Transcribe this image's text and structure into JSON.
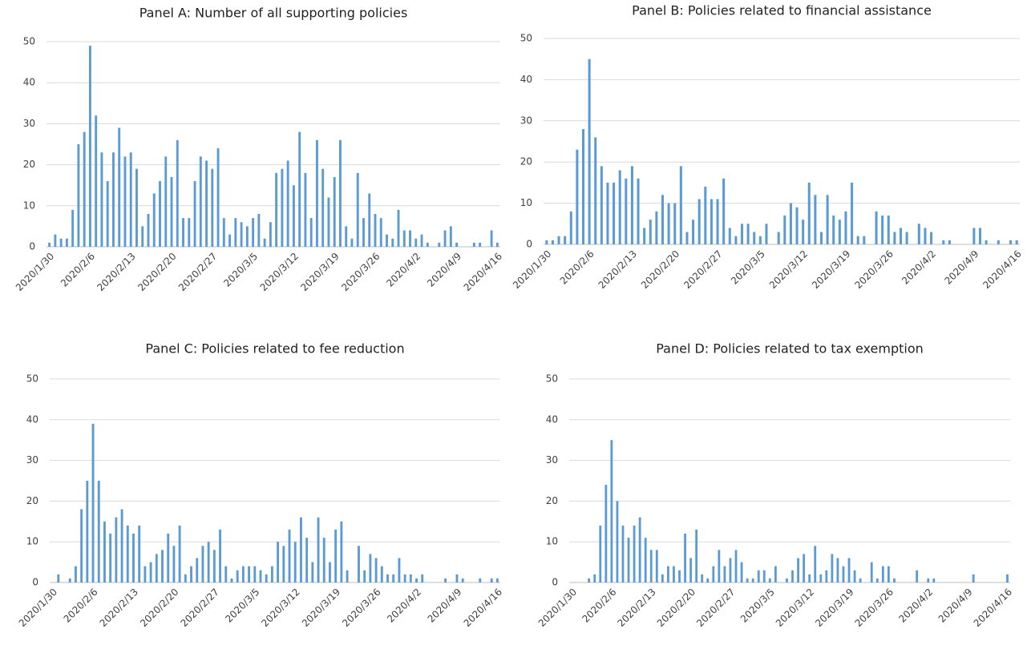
{
  "chart_data": [
    {
      "type": "bar",
      "title": "Panel A: Number of all supporting policies",
      "color": "#5b9bd5",
      "ylim": [
        0,
        50
      ],
      "yticks": [
        0,
        10,
        20,
        30,
        40,
        50
      ],
      "grid": true,
      "categories": [
        "2020/1/30",
        null,
        null,
        null,
        null,
        null,
        null,
        "2020/2/6",
        null,
        null,
        null,
        null,
        null,
        null,
        "2020/2/13",
        null,
        null,
        null,
        null,
        null,
        null,
        "2020/2/20",
        null,
        null,
        null,
        null,
        null,
        null,
        "2020/2/27",
        null,
        null,
        null,
        null,
        null,
        null,
        "2020/3/5",
        null,
        null,
        null,
        null,
        null,
        null,
        "2020/3/12",
        null,
        null,
        null,
        null,
        null,
        null,
        "2020/3/19",
        null,
        null,
        null,
        null,
        null,
        null,
        "2020/3/26",
        null,
        null,
        null,
        null,
        null,
        null,
        "2020/4/2",
        null,
        null,
        null,
        null,
        null,
        null,
        "2020/4/9",
        null,
        null,
        null,
        null,
        null,
        null,
        "2020/4/16"
      ],
      "values": [
        1,
        3,
        2,
        2,
        9,
        25,
        28,
        49,
        32,
        23,
        16,
        23,
        29,
        22,
        23,
        19,
        5,
        8,
        13,
        16,
        22,
        17,
        26,
        7,
        7,
        16,
        22,
        21,
        19,
        24,
        7,
        3,
        7,
        6,
        5,
        7,
        8,
        2,
        6,
        18,
        19,
        21,
        15,
        28,
        18,
        7,
        26,
        19,
        12,
        17,
        26,
        5,
        2,
        18,
        7,
        13,
        8,
        7,
        3,
        2,
        9,
        4,
        4,
        2,
        3,
        1,
        0,
        1,
        4,
        5,
        1,
        0,
        0,
        1,
        1,
        0,
        4,
        1
      ]
    },
    {
      "type": "bar",
      "title": "Panel B: Policies related to financial assistance",
      "color": "#5b9bd5",
      "ylim": [
        0,
        50
      ],
      "yticks": [
        0,
        10,
        20,
        30,
        40,
        50
      ],
      "grid": true,
      "categories": [
        "2020/1/30",
        null,
        null,
        null,
        null,
        null,
        null,
        "2020/2/6",
        null,
        null,
        null,
        null,
        null,
        null,
        "2020/2/13",
        null,
        null,
        null,
        null,
        null,
        null,
        "2020/2/20",
        null,
        null,
        null,
        null,
        null,
        null,
        "2020/2/27",
        null,
        null,
        null,
        null,
        null,
        null,
        "2020/3/5",
        null,
        null,
        null,
        null,
        null,
        null,
        "2020/3/12",
        null,
        null,
        null,
        null,
        null,
        null,
        "2020/3/19",
        null,
        null,
        null,
        null,
        null,
        null,
        "2020/3/26",
        null,
        null,
        null,
        null,
        null,
        null,
        "2020/4/2",
        null,
        null,
        null,
        null,
        null,
        null,
        "2020/4/9",
        null,
        null,
        null,
        null,
        null,
        null,
        "2020/4/16"
      ],
      "values": [
        1,
        1,
        2,
        2,
        8,
        23,
        28,
        45,
        26,
        19,
        15,
        15,
        18,
        16,
        19,
        16,
        4,
        6,
        8,
        12,
        10,
        10,
        19,
        3,
        6,
        11,
        14,
        11,
        11,
        16,
        4,
        2,
        5,
        5,
        3,
        2,
        5,
        0,
        3,
        7,
        10,
        9,
        6,
        15,
        12,
        3,
        12,
        7,
        6,
        8,
        15,
        2,
        2,
        0,
        8,
        7,
        7,
        3,
        4,
        3,
        0,
        5,
        4,
        3,
        0,
        1,
        1,
        0,
        0,
        0,
        4,
        4,
        1,
        0,
        1,
        0,
        1,
        1
      ]
    },
    {
      "type": "bar",
      "title": "Panel C: Policies related to fee reduction",
      "color": "#5b9bd5",
      "ylim": [
        0,
        50
      ],
      "yticks": [
        0,
        10,
        20,
        30,
        40,
        50
      ],
      "grid": true,
      "categories": [
        "2020/1/30",
        null,
        null,
        null,
        null,
        null,
        null,
        "2020/2/6",
        null,
        null,
        null,
        null,
        null,
        null,
        "2020/2/13",
        null,
        null,
        null,
        null,
        null,
        null,
        "2020/2/20",
        null,
        null,
        null,
        null,
        null,
        null,
        "2020/2/27",
        null,
        null,
        null,
        null,
        null,
        null,
        "2020/3/5",
        null,
        null,
        null,
        null,
        null,
        null,
        "2020/3/12",
        null,
        null,
        null,
        null,
        null,
        null,
        "2020/3/19",
        null,
        null,
        null,
        null,
        null,
        null,
        "2020/3/26",
        null,
        null,
        null,
        null,
        null,
        null,
        "2020/4/2",
        null,
        null,
        null,
        null,
        null,
        null,
        "2020/4/9",
        null,
        null,
        null,
        null,
        null,
        null,
        "2020/4/16"
      ],
      "values": [
        0,
        2,
        0,
        1,
        4,
        18,
        25,
        39,
        25,
        15,
        12,
        16,
        18,
        14,
        12,
        14,
        4,
        5,
        7,
        8,
        12,
        9,
        14,
        2,
        4,
        6,
        9,
        10,
        8,
        13,
        4,
        1,
        3,
        4,
        4,
        4,
        3,
        2,
        4,
        10,
        9,
        13,
        10,
        16,
        11,
        5,
        16,
        11,
        5,
        13,
        15,
        3,
        0,
        9,
        3,
        7,
        6,
        4,
        2,
        2,
        6,
        2,
        2,
        1,
        2,
        0,
        0,
        0,
        1,
        0,
        2,
        1,
        0,
        0,
        1,
        0,
        1,
        1
      ]
    },
    {
      "type": "bar",
      "title": "Panel D: Policies related to tax exemption",
      "color": "#5b9bd5",
      "ylim": [
        0,
        50
      ],
      "yticks": [
        0,
        10,
        20,
        30,
        40,
        50
      ],
      "grid": true,
      "categories": [
        "2020/1/30",
        null,
        null,
        null,
        null,
        null,
        null,
        "2020/2/6",
        null,
        null,
        null,
        null,
        null,
        null,
        "2020/2/13",
        null,
        null,
        null,
        null,
        null,
        null,
        "2020/2/20",
        null,
        null,
        null,
        null,
        null,
        null,
        "2020/2/27",
        null,
        null,
        null,
        null,
        null,
        null,
        "2020/3/5",
        null,
        null,
        null,
        null,
        null,
        null,
        "2020/3/12",
        null,
        null,
        null,
        null,
        null,
        null,
        "2020/3/19",
        null,
        null,
        null,
        null,
        null,
        null,
        "2020/3/26",
        null,
        null,
        null,
        null,
        null,
        null,
        "2020/4/2",
        null,
        null,
        null,
        null,
        null,
        null,
        "2020/4/9",
        null,
        null,
        null,
        null,
        null,
        null,
        "2020/4/16"
      ],
      "values": [
        0,
        0,
        0,
        1,
        2,
        14,
        24,
        35,
        20,
        14,
        11,
        14,
        16,
        11,
        8,
        8,
        2,
        4,
        4,
        3,
        12,
        6,
        13,
        2,
        1,
        4,
        8,
        4,
        6,
        8,
        5,
        1,
        1,
        3,
        3,
        1,
        4,
        0,
        1,
        3,
        6,
        7,
        2,
        9,
        2,
        3,
        7,
        6,
        4,
        6,
        3,
        1,
        0,
        5,
        1,
        4,
        4,
        1,
        0,
        0,
        0,
        3,
        0,
        1,
        1,
        0,
        0,
        0,
        0,
        0,
        0,
        2,
        0,
        0,
        0,
        0,
        0,
        2
      ]
    }
  ]
}
